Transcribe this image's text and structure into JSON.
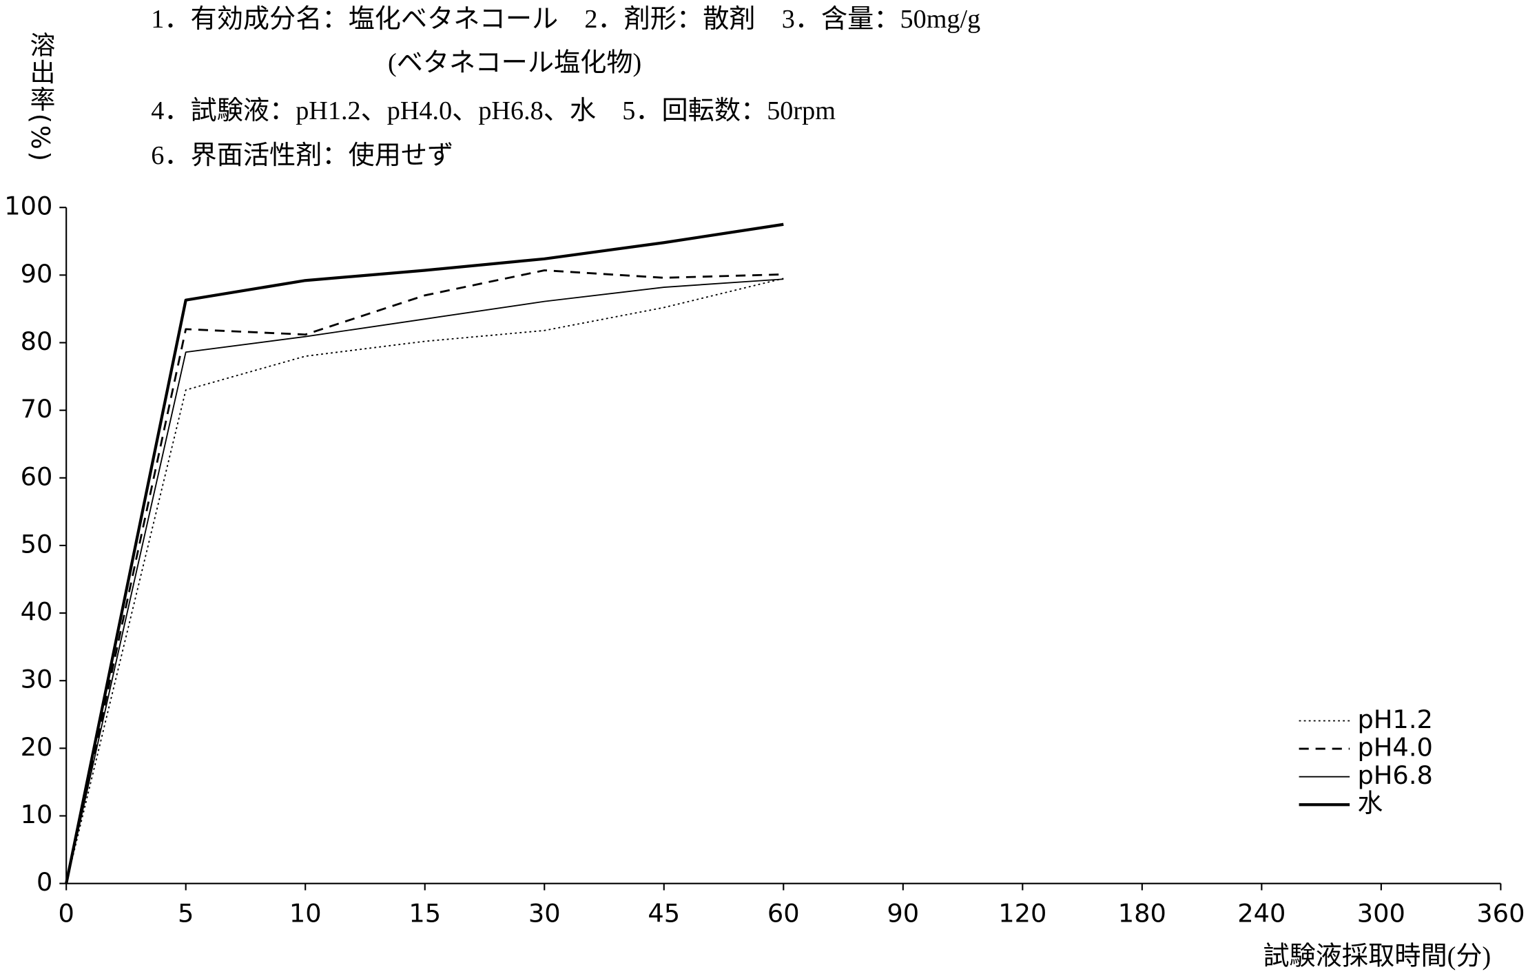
{
  "chart_data": {
    "type": "line",
    "annotations": [
      "1．有効成分名：塩化ベタネコール　2．剤形：散剤　3．含量：50mg/g",
      "(ベタネコール塩化物)",
      "4．試験液：pH1.2、pH4.0、pH6.8、水　5．回転数：50rpm",
      "6．界面活性剤：使用せず"
    ],
    "y_label": "溶出率(%)",
    "x_label": "試験液採取時間(分)",
    "categories": [
      "0",
      "5",
      "10",
      "15",
      "30",
      "45",
      "60",
      "90",
      "120",
      "180",
      "240",
      "300",
      "360"
    ],
    "series": [
      {
        "name": "pH1.2",
        "color": "#000000",
        "linestyle": "dotted",
        "linewidth": 1.3,
        "values": [
          0,
          73,
          78,
          80.2,
          81.8,
          85.2,
          89.5,
          null,
          null,
          null,
          null,
          null,
          null
        ]
      },
      {
        "name": "pH4.0",
        "color": "#000000",
        "linestyle": "dashed",
        "linewidth": 2,
        "values": [
          0,
          82,
          81.2,
          87,
          90.7,
          89.6,
          90.1,
          null,
          null,
          null,
          null,
          null,
          null
        ]
      },
      {
        "name": "pH6.8",
        "color": "#000000",
        "linestyle": "solid",
        "linewidth": 1.3,
        "values": [
          0,
          78.6,
          80.9,
          83.5,
          86.1,
          88.2,
          89.4,
          null,
          null,
          null,
          null,
          null,
          null
        ]
      },
      {
        "name": "水",
        "color": "#000000",
        "linestyle": "solid",
        "linewidth": 3,
        "values": [
          0,
          86.3,
          89.2,
          90.7,
          92.4,
          94.8,
          97.5,
          null,
          null,
          null,
          null,
          null,
          null
        ]
      }
    ],
    "ylim": [
      0,
      100
    ],
    "yticks": [
      0,
      10,
      20,
      30,
      40,
      50,
      60,
      70,
      80,
      90,
      100
    ],
    "grid": false,
    "legend": "lower right"
  }
}
